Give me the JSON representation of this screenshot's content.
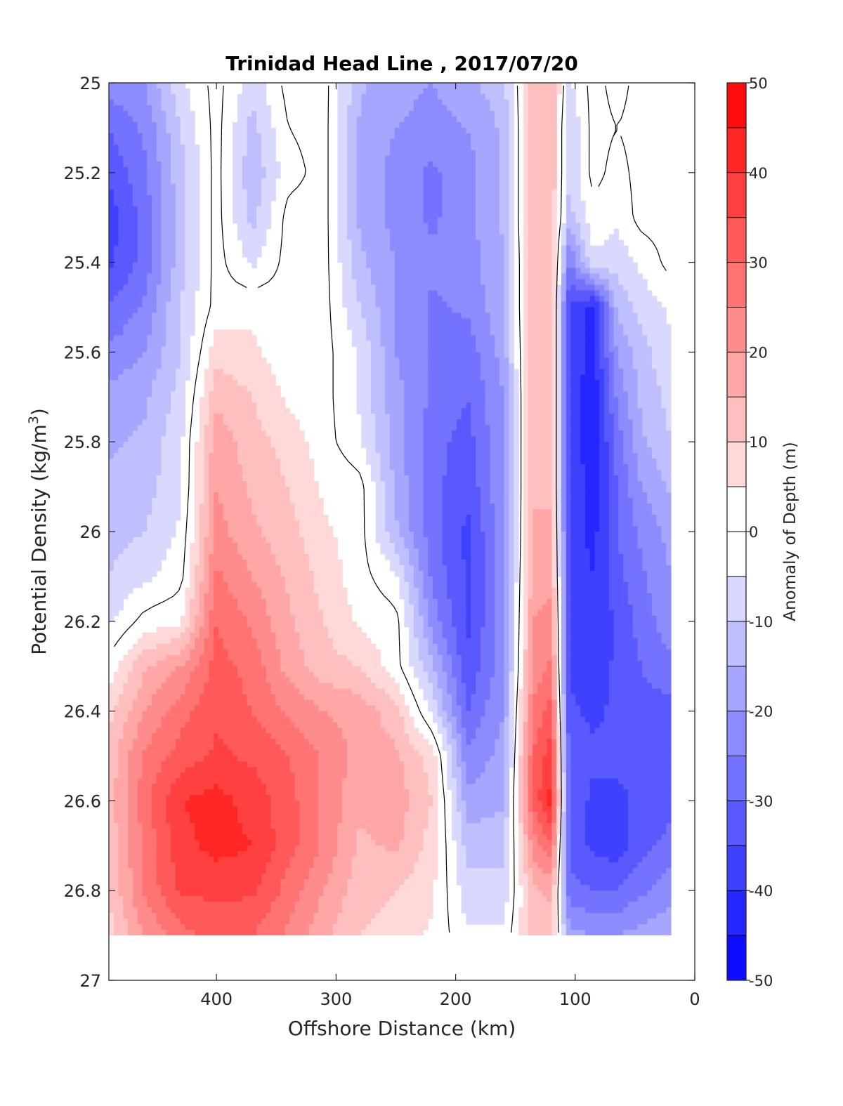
{
  "chart_data": {
    "type": "filled-contour",
    "title": "Trinidad Head Line , 2017/07/20",
    "xlabel": "Offshore Distance (km)",
    "ylabel": {
      "text": "Potential Density (kg/m",
      "sup": "3",
      "close": ")"
    },
    "colorbar_label": "Anomaly of Depth (m)",
    "x_ticks": [
      "400",
      "300",
      "200",
      "100",
      "0"
    ],
    "y_ticks": [
      "25",
      "25.2",
      "25.4",
      "25.6",
      "25.8",
      "26",
      "26.2",
      "26.4",
      "26.6",
      "26.8",
      "27"
    ],
    "colorbar_ticks": [
      "50",
      "40",
      "30",
      "20",
      "10",
      "0",
      "-10",
      "-20",
      "-30",
      "-40",
      "-50"
    ],
    "xlim": [
      490,
      0
    ],
    "xdir": "reverse",
    "ylim": [
      25,
      27
    ],
    "ydir": "reverse",
    "clim": [
      -50,
      50
    ],
    "contour_interval": 5,
    "zero_contour_color": "#000000",
    "colormap": {
      "negative": "#0000ff",
      "zero": "#ffffff",
      "positive": "#ff0000"
    },
    "data_extent": {
      "x": [
        490,
        20
      ],
      "y": [
        25,
        26.9
      ]
    },
    "grid": {
      "x": [
        490,
        460,
        430,
        400,
        370,
        340,
        310,
        280,
        250,
        220,
        190,
        160,
        135,
        120,
        105,
        85,
        65,
        45,
        20
      ],
      "y": [
        25,
        25.1,
        25.2,
        25.3,
        25.4,
        25.5,
        25.6,
        25.7,
        25.8,
        25.9,
        26,
        26.1,
        26.2,
        26.3,
        26.4,
        26.5,
        26.6,
        26.7,
        26.8,
        26.9
      ],
      "z": [
        [
          -22,
          -20,
          -6,
          2,
          -8,
          2,
          2,
          -14,
          -18,
          -20,
          -16,
          -12,
          14,
          14,
          -6,
          2,
          -2,
          2,
          2
        ],
        [
          -30,
          -24,
          -10,
          2,
          -12,
          0,
          2,
          -16,
          -20,
          -22,
          -20,
          -14,
          14,
          14,
          -10,
          2,
          0,
          2,
          2
        ],
        [
          -34,
          -26,
          -12,
          2,
          -14,
          -2,
          2,
          -16,
          -22,
          -26,
          -22,
          -14,
          14,
          14,
          -10,
          2,
          -2,
          2,
          2
        ],
        [
          -38,
          -28,
          -12,
          2,
          -12,
          2,
          2,
          -16,
          -22,
          -26,
          -22,
          -14,
          14,
          14,
          -12,
          -2,
          -4,
          2,
          2
        ],
        [
          -36,
          -28,
          -12,
          2,
          -6,
          2,
          2,
          -14,
          -20,
          -24,
          -22,
          -16,
          14,
          14,
          -26,
          -6,
          -8,
          -4,
          2
        ],
        [
          -30,
          -24,
          -10,
          2,
          4,
          2,
          2,
          -10,
          -20,
          -26,
          -24,
          -16,
          14,
          14,
          -36,
          -42,
          -14,
          -8,
          -4
        ],
        [
          -24,
          -20,
          -10,
          8,
          6,
          2,
          2,
          -6,
          -20,
          -26,
          -28,
          -18,
          14,
          14,
          -36,
          -42,
          -20,
          -12,
          -6
        ],
        [
          -18,
          -16,
          -8,
          14,
          10,
          4,
          2,
          -6,
          -18,
          -26,
          -30,
          -20,
          14,
          14,
          -36,
          -44,
          -24,
          -14,
          -8
        ],
        [
          -16,
          -14,
          -6,
          18,
          12,
          8,
          2,
          -4,
          -18,
          -28,
          -32,
          -20,
          14,
          14,
          -36,
          -44,
          -28,
          -16,
          -10
        ],
        [
          -14,
          -12,
          -6,
          20,
          14,
          10,
          4,
          2,
          -16,
          -28,
          -34,
          -20,
          14,
          14,
          -36,
          -42,
          -30,
          -20,
          -14
        ],
        [
          -12,
          -10,
          -4,
          22,
          16,
          12,
          6,
          2,
          -14,
          -28,
          -36,
          -22,
          16,
          16,
          -36,
          -42,
          -30,
          -24,
          -18
        ],
        [
          -10,
          -6,
          -2,
          26,
          20,
          14,
          8,
          2,
          -4,
          -26,
          -36,
          -22,
          18,
          18,
          -36,
          -40,
          -32,
          -26,
          -20
        ],
        [
          -6,
          2,
          4,
          30,
          24,
          16,
          10,
          4,
          2,
          -22,
          -36,
          -22,
          20,
          22,
          -36,
          -40,
          -34,
          -28,
          -22
        ],
        [
          2,
          14,
          20,
          32,
          28,
          18,
          12,
          10,
          2,
          -14,
          -34,
          -22,
          22,
          26,
          -36,
          -38,
          -34,
          -30,
          -26
        ],
        [
          8,
          20,
          28,
          34,
          30,
          24,
          20,
          18,
          12,
          -6,
          -30,
          -20,
          26,
          32,
          -34,
          -36,
          -34,
          -32,
          -32
        ],
        [
          12,
          26,
          32,
          36,
          34,
          30,
          24,
          18,
          16,
          8,
          -24,
          -18,
          30,
          38,
          -32,
          -34,
          -34,
          -34,
          -34
        ],
        [
          12,
          28,
          40,
          42,
          38,
          32,
          24,
          16,
          18,
          10,
          -18,
          -16,
          32,
          42,
          -32,
          -36,
          -36,
          -34,
          -32
        ],
        [
          12,
          26,
          38,
          42,
          40,
          32,
          24,
          14,
          16,
          8,
          -12,
          -12,
          22,
          30,
          -32,
          -36,
          -38,
          -32,
          -28
        ],
        [
          10,
          26,
          36,
          36,
          36,
          28,
          20,
          12,
          10,
          6,
          -8,
          -8,
          14,
          16,
          -28,
          -30,
          -30,
          -26,
          -22
        ],
        [
          8,
          20,
          28,
          32,
          30,
          24,
          16,
          10,
          8,
          4,
          -4,
          -4,
          12,
          12,
          -18,
          -20,
          -20,
          -18,
          -16
        ]
      ]
    }
  }
}
